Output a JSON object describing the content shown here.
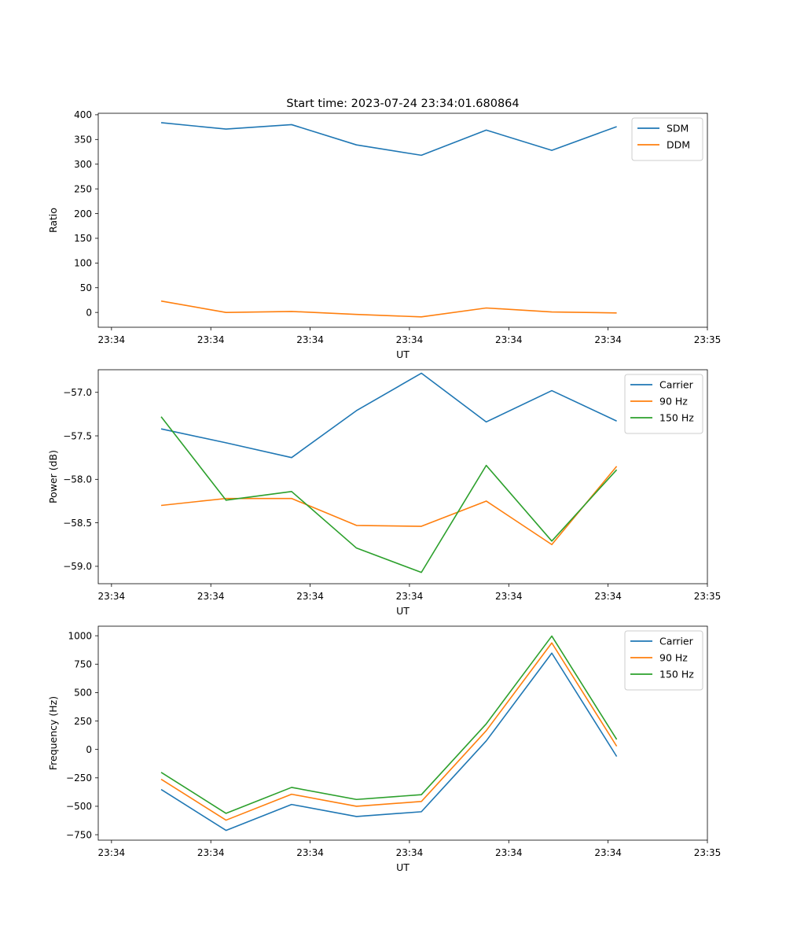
{
  "figure": {
    "title": "Start time: 2023-07-24 23:34:01.680864"
  },
  "colors": {
    "c0": "#1f77b4",
    "c1": "#ff7f0e",
    "c2": "#2ca02c"
  },
  "chart_data": [
    {
      "type": "line",
      "id": "ratio",
      "title": "Start time: 2023-07-24 23:34:01.680864",
      "xlabel": "UT",
      "ylabel": "Ratio",
      "xlim": [
        0,
        9.2
      ],
      "ylim": [
        -30,
        403
      ],
      "x_ticks": [
        0.2,
        1.7,
        3.2,
        4.7,
        6.2,
        7.7,
        9.2
      ],
      "x_tick_labels": [
        "23:34",
        "23:34",
        "23:34",
        "23:34",
        "23:34",
        "23:34",
        "23:35"
      ],
      "y_ticks": [
        0,
        50,
        100,
        150,
        200,
        250,
        300,
        350,
        400
      ],
      "y_tick_labels": [
        "0",
        "50",
        "100",
        "150",
        "200",
        "250",
        "300",
        "350",
        "400"
      ],
      "legend_position": "top-right",
      "x": [
        0.95,
        1.93,
        2.92,
        3.9,
        4.88,
        5.86,
        6.85,
        7.83
      ],
      "series": [
        {
          "name": "SDM",
          "color": "#1f77b4",
          "values": [
            384,
            371,
            380,
            339,
            318,
            369,
            328,
            376
          ]
        },
        {
          "name": "DDM",
          "color": "#ff7f0e",
          "values": [
            23,
            0,
            2,
            -4,
            -9,
            9,
            1,
            -1
          ]
        }
      ]
    },
    {
      "type": "line",
      "id": "power",
      "title": "",
      "xlabel": "UT",
      "ylabel": "Power (dB)",
      "xlim": [
        0,
        9.2
      ],
      "ylim": [
        -59.2,
        -56.74
      ],
      "x_ticks": [
        0.2,
        1.7,
        3.2,
        4.7,
        6.2,
        7.7,
        9.2
      ],
      "x_tick_labels": [
        "23:34",
        "23:34",
        "23:34",
        "23:34",
        "23:34",
        "23:34",
        "23:35"
      ],
      "y_ticks": [
        -59.0,
        -58.5,
        -58.0,
        -57.5,
        -57.0
      ],
      "y_tick_labels": [
        "−59.0",
        "−58.5",
        "−58.0",
        "−57.5",
        "−57.0"
      ],
      "legend_position": "top-right",
      "x": [
        0.95,
        1.93,
        2.92,
        3.9,
        4.88,
        5.86,
        6.85,
        7.83
      ],
      "series": [
        {
          "name": "Carrier",
          "color": "#1f77b4",
          "values": [
            -57.42,
            -57.58,
            -57.75,
            -57.21,
            -56.78,
            -57.34,
            -56.98,
            -57.33
          ]
        },
        {
          "name": "90 Hz",
          "color": "#ff7f0e",
          "values": [
            -58.3,
            -58.22,
            -58.22,
            -58.53,
            -58.54,
            -58.25,
            -58.75,
            -57.85
          ]
        },
        {
          "name": "150 Hz",
          "color": "#2ca02c",
          "values": [
            -57.28,
            -58.24,
            -58.14,
            -58.79,
            -59.07,
            -57.84,
            -58.71,
            -57.89
          ]
        }
      ]
    },
    {
      "type": "line",
      "id": "frequency",
      "title": "",
      "xlabel": "UT",
      "ylabel": "Frequency (Hz)",
      "xlim": [
        0,
        9.2
      ],
      "ylim": [
        -798,
        1084
      ],
      "x_ticks": [
        0.2,
        1.7,
        3.2,
        4.7,
        6.2,
        7.7,
        9.2
      ],
      "x_tick_labels": [
        "23:34",
        "23:34",
        "23:34",
        "23:34",
        "23:34",
        "23:34",
        "23:35"
      ],
      "y_ticks": [
        -750,
        -500,
        -250,
        0,
        250,
        500,
        750,
        1000
      ],
      "y_tick_labels": [
        "−750",
        "−500",
        "−250",
        "0",
        "250",
        "500",
        "750",
        "1000"
      ],
      "legend_position": "top-right",
      "x": [
        0.95,
        1.93,
        2.92,
        3.9,
        4.88,
        5.86,
        6.85,
        7.83
      ],
      "series": [
        {
          "name": "Carrier",
          "color": "#1f77b4",
          "values": [
            -352,
            -712,
            -484,
            -590,
            -548,
            75,
            847,
            -62
          ]
        },
        {
          "name": "90 Hz",
          "color": "#ff7f0e",
          "values": [
            -262,
            -622,
            -394,
            -500,
            -458,
            165,
            937,
            28
          ]
        },
        {
          "name": "150 Hz",
          "color": "#2ca02c",
          "values": [
            -202,
            -562,
            -334,
            -440,
            -398,
            225,
            997,
            88
          ]
        }
      ]
    }
  ]
}
